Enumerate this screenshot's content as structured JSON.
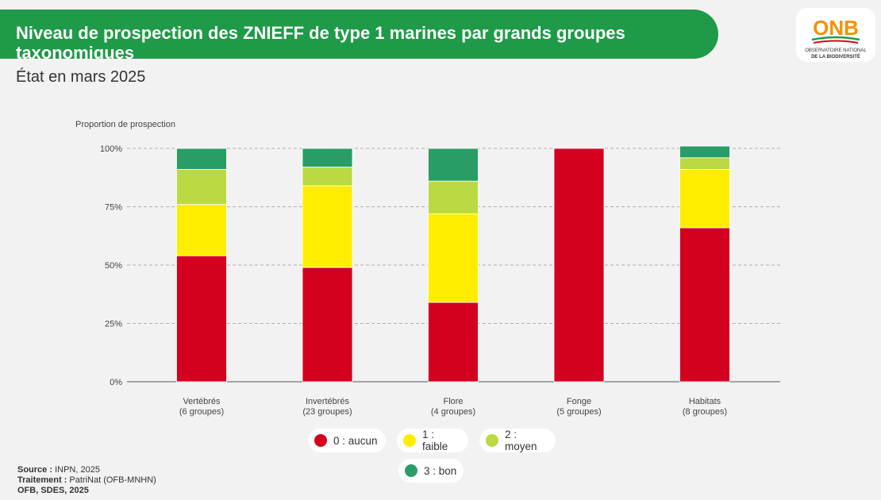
{
  "header": {
    "title": "Niveau de prospection des ZNIEFF de type 1 marines par grands groupes taxonomiques",
    "subtitle": "État en mars 2025"
  },
  "logo": {
    "text": "ONB",
    "line1": "OBSERVATOIRE NATIONAL",
    "line2": "DE LA BIODIVERSITÉ"
  },
  "chart_data": {
    "type": "bar",
    "stacked": true,
    "ylabel": "Proportion de prospection",
    "ylim": [
      0,
      100
    ],
    "yticks": [
      {
        "value": 0,
        "label": "0%"
      },
      {
        "value": 25,
        "label": "25%"
      },
      {
        "value": 50,
        "label": "50%"
      },
      {
        "value": 75,
        "label": "75%"
      },
      {
        "value": 100,
        "label": "100%"
      }
    ],
    "grid": true,
    "categories": [
      {
        "line1": "Vertébrés",
        "line2": "(6 groupes)"
      },
      {
        "line1": "Invertébrés",
        "line2": "(23 groupes)"
      },
      {
        "line1": "Flore",
        "line2": "(4 groupes)"
      },
      {
        "line1": "Fonge",
        "line2": "(5 groupes)"
      },
      {
        "line1": "Habitats",
        "line2": "(8 groupes)"
      }
    ],
    "series": [
      {
        "name": "0 : aucun",
        "color": "#d4001f",
        "values": [
          54,
          49,
          34,
          100,
          66
        ]
      },
      {
        "name": "1 : faible",
        "color": "#ffed00",
        "values": [
          22,
          35,
          38,
          0,
          25
        ]
      },
      {
        "name": "2 : moyen",
        "color": "#bbd943",
        "values": [
          15,
          8,
          14,
          0,
          5
        ]
      },
      {
        "name": "3 : bon",
        "color": "#2a9d66",
        "values": [
          9,
          8,
          14,
          0,
          5
        ]
      }
    ],
    "legend_position": "bottom"
  },
  "footer": {
    "source_label": "Source :",
    "source_value": "INPN, 2025",
    "treatment_label": "Traitement :",
    "treatment_value": "PatriNat (OFB-MNHN)",
    "credit": "OFB, SDES, 2025"
  }
}
